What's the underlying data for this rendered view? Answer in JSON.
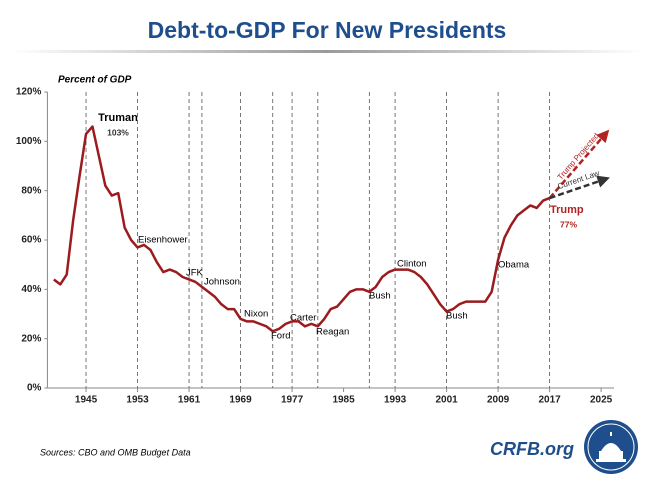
{
  "chart_data": {
    "type": "line",
    "title": "Debt-to-GDP For New Presidents",
    "y_label": "Percent of GDP",
    "source": "Sources: CBO and OMB Budget Data",
    "brand": "CRFB.org",
    "color": "#9b1b1f",
    "x": [
      1940,
      1941,
      1942,
      1943,
      1944,
      1945,
      1946,
      1947,
      1948,
      1949,
      1950,
      1951,
      1952,
      1953,
      1954,
      1955,
      1956,
      1957,
      1958,
      1959,
      1960,
      1961,
      1962,
      1963,
      1964,
      1965,
      1966,
      1967,
      1968,
      1969,
      1970,
      1971,
      1972,
      1973,
      1974,
      1975,
      1976,
      1977,
      1978,
      1979,
      1980,
      1981,
      1982,
      1983,
      1984,
      1985,
      1986,
      1987,
      1988,
      1989,
      1990,
      1991,
      1992,
      1993,
      1994,
      1995,
      1996,
      1997,
      1998,
      1999,
      2000,
      2001,
      2002,
      2003,
      2004,
      2005,
      2006,
      2007,
      2008,
      2009,
      2010,
      2011,
      2012,
      2013,
      2014,
      2015,
      2016,
      2017
    ],
    "values": [
      44,
      42,
      46,
      68,
      86,
      103,
      106,
      94,
      82,
      78,
      79,
      65,
      60,
      57,
      58,
      56,
      51,
      47,
      48,
      47,
      45,
      44,
      43,
      41,
      39,
      37,
      34,
      32,
      32,
      28,
      27,
      27,
      26,
      25,
      23,
      24,
      26,
      27,
      27,
      25,
      26,
      25,
      28,
      32,
      33,
      36,
      39,
      40,
      40,
      39,
      41,
      45,
      47,
      48,
      48,
      48,
      47,
      45,
      42,
      38,
      34,
      31,
      32,
      34,
      35,
      35,
      35,
      35,
      39,
      52,
      61,
      66,
      70,
      72,
      74,
      73,
      76,
      77
    ],
    "series": [
      {
        "name": "Trump Projected",
        "color": "#b22222",
        "x": [
          2017,
          2026
        ],
        "values": [
          77,
          104
        ]
      },
      {
        "name": "Current Law",
        "color": "#333333",
        "x": [
          2017,
          2026
        ],
        "values": [
          77,
          85
        ]
      }
    ],
    "presidents": [
      {
        "name": "Truman",
        "year": 1945,
        "note": "103%"
      },
      {
        "name": "Eisenhower",
        "year": 1953
      },
      {
        "name": "JFK",
        "year": 1961
      },
      {
        "name": "Johnson",
        "year": 1963
      },
      {
        "name": "Nixon",
        "year": 1969
      },
      {
        "name": "Ford",
        "year": 1974
      },
      {
        "name": "Carter",
        "year": 1977
      },
      {
        "name": "Reagan",
        "year": 1981
      },
      {
        "name": "Bush",
        "year": 1989
      },
      {
        "name": "Clinton",
        "year": 1993
      },
      {
        "name": "Bush",
        "year": 2001
      },
      {
        "name": "Obama",
        "year": 2009
      },
      {
        "name": "Trump",
        "year": 2017,
        "note": "77%"
      }
    ],
    "xlim": [
      1939,
      2027
    ],
    "xticks": [
      1945,
      1953,
      1961,
      1969,
      1977,
      1985,
      1993,
      2001,
      2009,
      2017,
      2025
    ],
    "ylim": [
      0,
      120
    ],
    "yticks": [
      {
        "value": 0,
        "label": "0%"
      },
      {
        "value": 20,
        "label": "20%"
      },
      {
        "value": 40,
        "label": "40%"
      },
      {
        "value": 60,
        "label": "60%"
      },
      {
        "value": 80,
        "label": "80%"
      },
      {
        "value": 100,
        "label": "100%"
      },
      {
        "value": 120,
        "label": "120%"
      }
    ]
  }
}
